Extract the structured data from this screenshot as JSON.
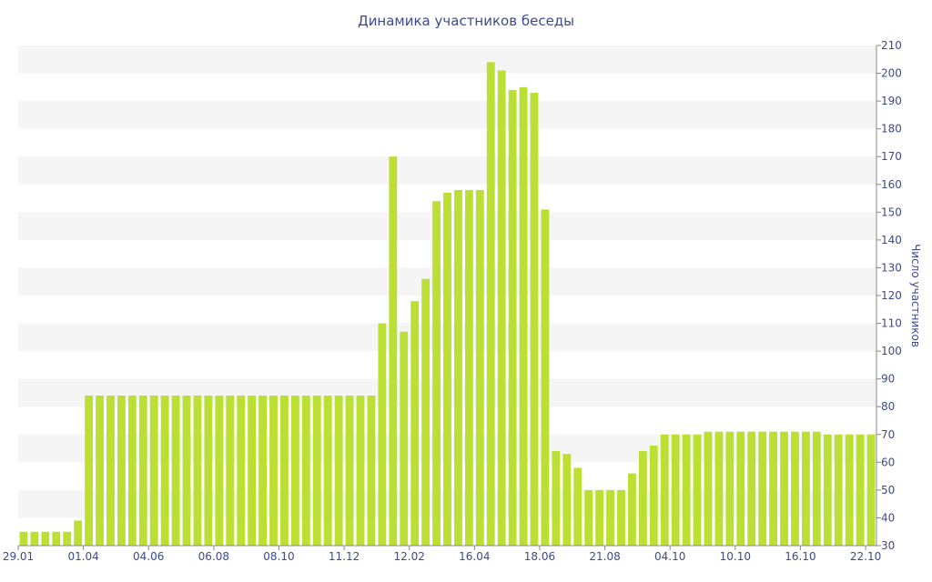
{
  "colors": {
    "bar": "#bbdf32",
    "band": "#f5f5f5",
    "text": "#3d4a8c",
    "axis": "#888888"
  },
  "chart_data": {
    "type": "bar",
    "title": "Динамика участников беседы",
    "xlabel": "",
    "ylabel": "Число участников",
    "ylim": [
      30,
      210
    ],
    "y_ticks": [
      30,
      40,
      50,
      60,
      70,
      80,
      90,
      100,
      110,
      120,
      130,
      140,
      150,
      160,
      170,
      180,
      190,
      200,
      210
    ],
    "y_axis_side": "right",
    "grid": "alternating horizontal bands",
    "legend": "none",
    "x_tick_labels": [
      {
        "label": "29.01",
        "index": 0
      },
      {
        "label": "01.04",
        "index": 6
      },
      {
        "label": "04.06",
        "index": 12
      },
      {
        "label": "06.08",
        "index": 18
      },
      {
        "label": "08.10",
        "index": 24
      },
      {
        "label": "11.12",
        "index": 30
      },
      {
        "label": "12.02",
        "index": 36
      },
      {
        "label": "16.04",
        "index": 42
      },
      {
        "label": "18.06",
        "index": 48
      },
      {
        "label": "21.08",
        "index": 54
      },
      {
        "label": "04.10",
        "index": 60
      },
      {
        "label": "10.10",
        "index": 66
      },
      {
        "label": "16.10",
        "index": 72
      },
      {
        "label": "22.10",
        "index": 78
      }
    ],
    "values": [
      35,
      35,
      35,
      35,
      35,
      39,
      84,
      84,
      84,
      84,
      84,
      84,
      84,
      84,
      84,
      84,
      84,
      84,
      84,
      84,
      84,
      84,
      84,
      84,
      84,
      84,
      84,
      84,
      84,
      84,
      84,
      84,
      84,
      110,
      170,
      107,
      118,
      126,
      154,
      157,
      158,
      158,
      158,
      204,
      201,
      194,
      195,
      193,
      151,
      64,
      63,
      58,
      50,
      50,
      50,
      50,
      56,
      64,
      66,
      70,
      70,
      70,
      70,
      71,
      71,
      71,
      71,
      71,
      71,
      71,
      71,
      71,
      71,
      71,
      70,
      70,
      70,
      70,
      70
    ]
  }
}
